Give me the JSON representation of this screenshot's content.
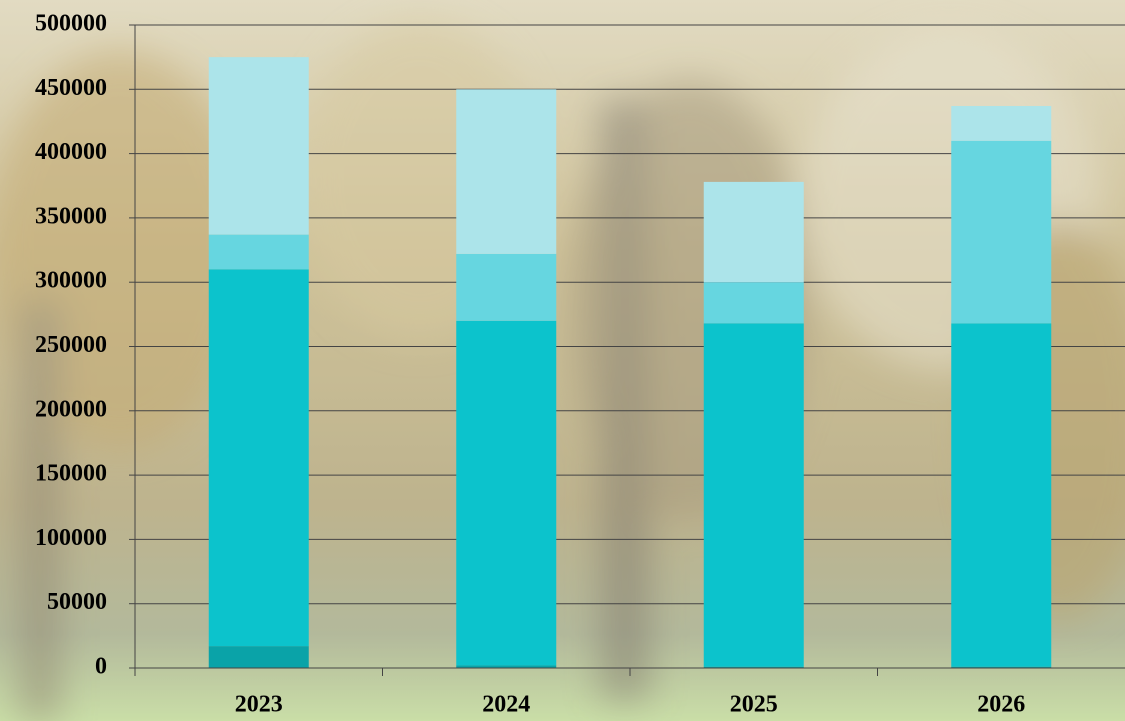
{
  "chart_data": {
    "type": "stacked_bar",
    "categories": [
      "2023",
      "2024",
      "2025",
      "2026"
    ],
    "series": [
      {
        "color": "#0aa3a8",
        "values": [
          17000,
          2000,
          1000,
          1000
        ]
      },
      {
        "color": "#0cc3cc",
        "values": [
          293000,
          268000,
          267000,
          267000
        ]
      },
      {
        "color": "#66d6e0",
        "values": [
          27000,
          52000,
          32000,
          142000
        ]
      },
      {
        "color": "#ace4ea",
        "values": [
          138000,
          128000,
          78000,
          27000
        ]
      }
    ],
    "ylim": [
      0,
      500000
    ],
    "yticks": [
      0,
      50000,
      100000,
      150000,
      200000,
      250000,
      300000,
      350000,
      400000,
      450000,
      500000
    ],
    "grid": true
  }
}
